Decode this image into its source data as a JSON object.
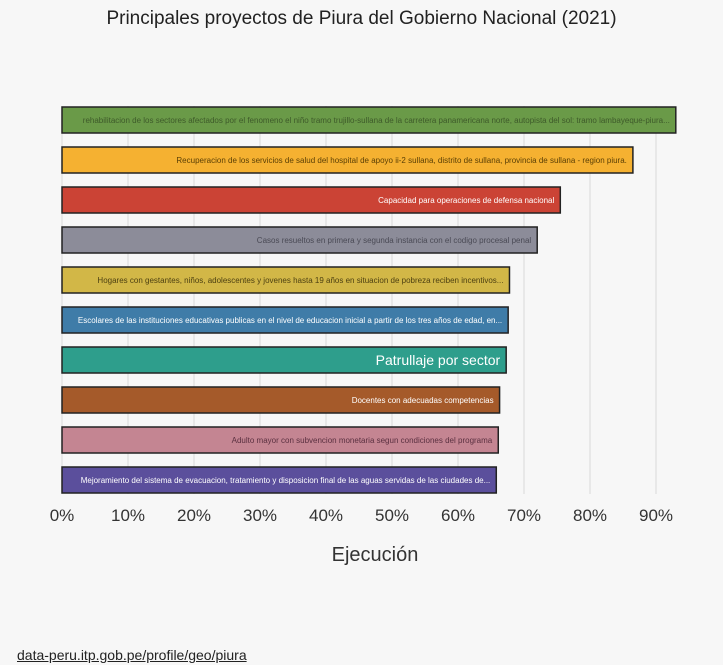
{
  "chart_data": {
    "type": "bar",
    "orientation": "horizontal",
    "title": "Principales proyectos de Piura del Gobierno Nacional (2021)",
    "xlabel": "Ejecución",
    "ylabel": "",
    "xlim": [
      0,
      100
    ],
    "xticks": [
      0,
      10,
      20,
      30,
      40,
      50,
      60,
      70,
      80,
      90
    ],
    "tick_suffix": "%",
    "grid": true,
    "legend": "none",
    "categories": [
      "rehabilitacion de los sectores afectados por el fenomeno el niño tramo trujillo-sullana de la carretera panamericana norte, autopista del sol: tramo lambayeque-piura...",
      "Recuperacion de los servicios de salud del hospital de apoyo ii-2 sullana, distrito de sullana, provincia de sullana - region piura.",
      "Capacidad para operaciones de defensa nacional",
      "Casos resueltos en primera y segunda instancia con el codigo procesal penal",
      "Hogares con gestantes, niños, adolescentes y jovenes hasta 19 años en situacion de pobreza reciben incentivos...",
      "Escolares de las instituciones educativas publicas en el nivel de educacion inicial a partir de los tres años de edad, en...",
      "Patrullaje por sector",
      "Docentes con adecuadas competencias",
      "Adulto mayor con subvencion monetaria segun condiciones del programa",
      "Mejoramiento del sistema de evacuacion, tratamiento y disposicion final de las aguas servidas de las ciudades de..."
    ],
    "values": [
      93,
      86.5,
      75.5,
      72,
      67.8,
      67.6,
      67.3,
      66.3,
      66.1,
      65.8
    ],
    "colors": [
      "#6a9a48",
      "#f5b131",
      "#cb4335",
      "#8c8c99",
      "#d2b747",
      "#3f7ca8",
      "#2e9e8c",
      "#a55a2a",
      "#c48592",
      "#5b4f9c"
    ],
    "label_colors": [
      "#3e5a2a",
      "#5a3f05",
      "#ffffff",
      "#4a4a55",
      "#4d4012",
      "#ffffff",
      "#ffffff",
      "#ffffff",
      "#5a3040",
      "#ffffff"
    ]
  },
  "source": "data-peru.itp.gob.pe/profile/geo/piura"
}
